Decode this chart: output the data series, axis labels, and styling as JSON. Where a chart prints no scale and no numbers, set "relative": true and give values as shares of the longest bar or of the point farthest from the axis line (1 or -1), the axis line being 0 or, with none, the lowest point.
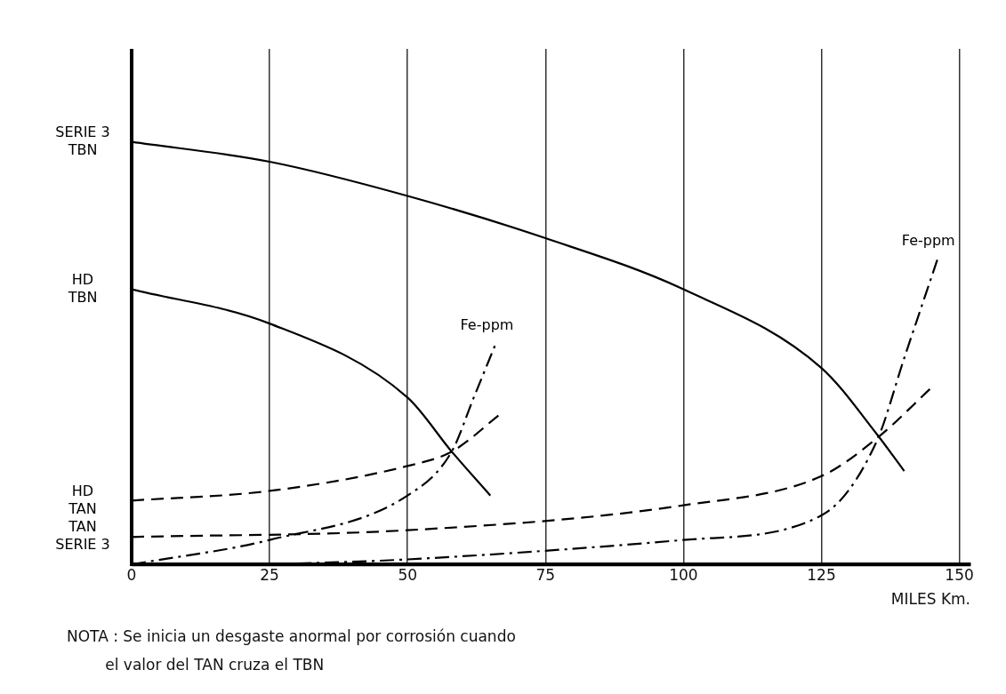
{
  "chart_data": {
    "type": "line",
    "relative": true,
    "xlabel": "MILES Km.",
    "xlim": [
      0,
      152
    ],
    "xticks": [
      0,
      25,
      50,
      75,
      100,
      125,
      150
    ],
    "grid": "x",
    "legend": false,
    "marker": "none",
    "series": [
      {
        "name": "SERIE 3\nTBN",
        "color": "#000000",
        "line_style": "solid",
        "x": [
          0,
          25,
          50,
          75,
          100,
          125,
          135,
          140
        ],
        "values": [
          1,
          0.953,
          0.872,
          0.772,
          0.651,
          0.465,
          0.309,
          0.221
        ]
      },
      {
        "name": "HD\nTBN",
        "color": "#000000",
        "line_style": "solid",
        "x": [
          0,
          25,
          50,
          58,
          65
        ],
        "values": [
          0.651,
          0.57,
          0.395,
          0.267,
          0.163
        ]
      },
      {
        "name": "HD\nTAN",
        "color": "#000000",
        "line_style": "dashed",
        "x": [
          0,
          25,
          50,
          58,
          67
        ],
        "values": [
          0.151,
          0.174,
          0.233,
          0.267,
          0.358
        ]
      },
      {
        "name": "TAN\nSERIE 3",
        "color": "#000000",
        "line_style": "dashed",
        "x": [
          0,
          50,
          100,
          125,
          135,
          145
        ],
        "values": [
          0.065,
          0.081,
          0.14,
          0.209,
          0.298,
          0.419
        ]
      },
      {
        "name": "Fe-ppm",
        "color": "#000000",
        "line_style": "dashdot",
        "x": [
          0,
          25,
          50,
          58,
          62,
          66
        ],
        "values": [
          0,
          0.058,
          0.163,
          0.267,
          0.395,
          0.523
        ]
      },
      {
        "name": "Fe-ppm",
        "color": "#000000",
        "line_style": "dashdot",
        "x": [
          25,
          50,
          100,
          125,
          135,
          140,
          146
        ],
        "values": [
          0,
          0.012,
          0.058,
          0.116,
          0.291,
          0.488,
          0.721
        ]
      }
    ],
    "annotations": [
      "NOTA : Se inicia un desgaste anormal por corrosión cuando\n        el valor del TAN cruza el TBN"
    ]
  }
}
